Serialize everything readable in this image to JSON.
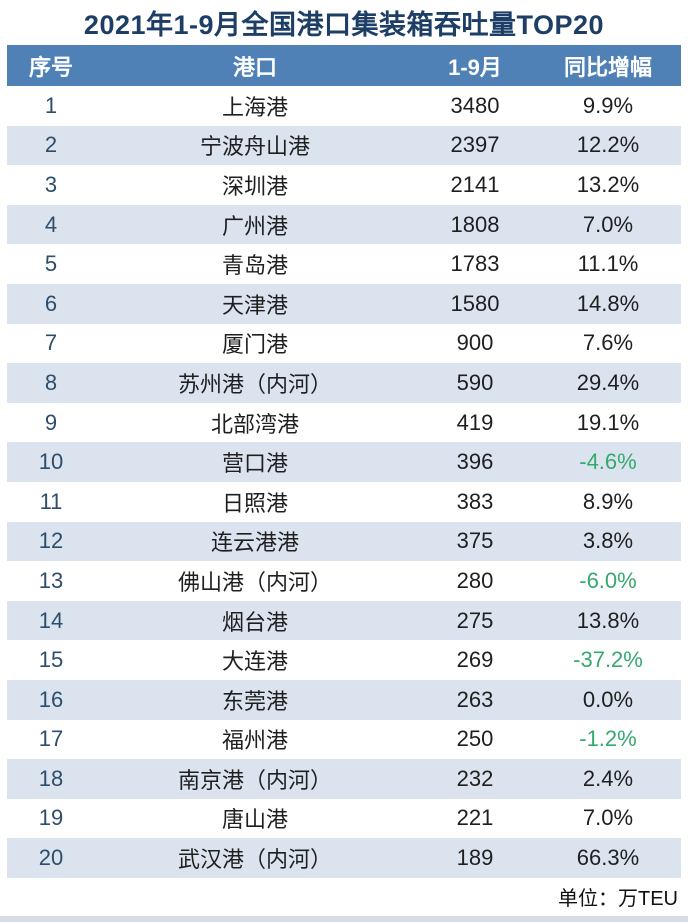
{
  "title": "2021年1-9月全国港口集装箱吞吐量TOP20",
  "footer": {
    "unit_note": "单位：万TEU"
  },
  "colors": {
    "title_text": "#1d3e66",
    "header_bg": "#4f81b7",
    "header_text": "#ffffff",
    "alt_row_bg": "#dbe4ee",
    "rank_text": "#2e4d6b",
    "body_text": "#1f1f1f",
    "negative_growth_text": "#35a96f",
    "bottom_strip": "#d7dce5"
  },
  "table": {
    "columns": [
      "序号",
      "港口",
      "1-9月",
      "同比增幅"
    ],
    "rows": [
      {
        "rank": "1",
        "port": "上海港",
        "value": "3480",
        "growth": "9.9%"
      },
      {
        "rank": "2",
        "port": "宁波舟山港",
        "value": "2397",
        "growth": "12.2%"
      },
      {
        "rank": "3",
        "port": "深圳港",
        "value": "2141",
        "growth": "13.2%"
      },
      {
        "rank": "4",
        "port": "广州港",
        "value": "1808",
        "growth": "7.0%"
      },
      {
        "rank": "5",
        "port": "青岛港",
        "value": "1783",
        "growth": "11.1%"
      },
      {
        "rank": "6",
        "port": "天津港",
        "value": "1580",
        "growth": "14.8%"
      },
      {
        "rank": "7",
        "port": "厦门港",
        "value": "900",
        "growth": "7.6%"
      },
      {
        "rank": "8",
        "port": "苏州港（内河）",
        "value": "590",
        "growth": "29.4%"
      },
      {
        "rank": "9",
        "port": "北部湾港",
        "value": "419",
        "growth": "19.1%"
      },
      {
        "rank": "10",
        "port": "营口港",
        "value": "396",
        "growth": "-4.6%"
      },
      {
        "rank": "11",
        "port": "日照港",
        "value": "383",
        "growth": "8.9%"
      },
      {
        "rank": "12",
        "port": "连云港港",
        "value": "375",
        "growth": "3.8%"
      },
      {
        "rank": "13",
        "port": "佛山港（内河）",
        "value": "280",
        "growth": "-6.0%"
      },
      {
        "rank": "14",
        "port": "烟台港",
        "value": "275",
        "growth": "13.8%"
      },
      {
        "rank": "15",
        "port": "大连港",
        "value": "269",
        "growth": "-37.2%"
      },
      {
        "rank": "16",
        "port": "东莞港",
        "value": "263",
        "growth": "0.0%"
      },
      {
        "rank": "17",
        "port": "福州港",
        "value": "250",
        "growth": "-1.2%"
      },
      {
        "rank": "18",
        "port": "南京港（内河）",
        "value": "232",
        "growth": "2.4%"
      },
      {
        "rank": "19",
        "port": "唐山港",
        "value": "221",
        "growth": "7.0%"
      },
      {
        "rank": "20",
        "port": "武汉港（内河）",
        "value": "189",
        "growth": "66.3%"
      }
    ]
  },
  "chart_data": {
    "type": "table",
    "title": "2021年1-9月全国港口集装箱吞吐量TOP20",
    "unit": "万TEU",
    "columns": [
      "序号",
      "港口",
      "1-9月",
      "同比增幅"
    ],
    "categories": [
      "上海港",
      "宁波舟山港",
      "深圳港",
      "广州港",
      "青岛港",
      "天津港",
      "厦门港",
      "苏州港（内河）",
      "北部湾港",
      "营口港",
      "日照港",
      "连云港港",
      "佛山港（内河）",
      "烟台港",
      "大连港",
      "东莞港",
      "福州港",
      "南京港（内河）",
      "唐山港",
      "武汉港（内河）"
    ],
    "series": [
      {
        "name": "1-9月吞吐量(万TEU)",
        "values": [
          3480,
          2397,
          2141,
          1808,
          1783,
          1580,
          900,
          590,
          419,
          396,
          383,
          375,
          280,
          275,
          269,
          263,
          250,
          232,
          221,
          189
        ]
      },
      {
        "name": "同比增幅(%)",
        "values": [
          9.9,
          12.2,
          13.2,
          7.0,
          11.1,
          14.8,
          7.6,
          29.4,
          19.1,
          -4.6,
          8.9,
          3.8,
          -6.0,
          13.8,
          -37.2,
          0.0,
          -1.2,
          2.4,
          7.0,
          66.3
        ]
      }
    ]
  }
}
